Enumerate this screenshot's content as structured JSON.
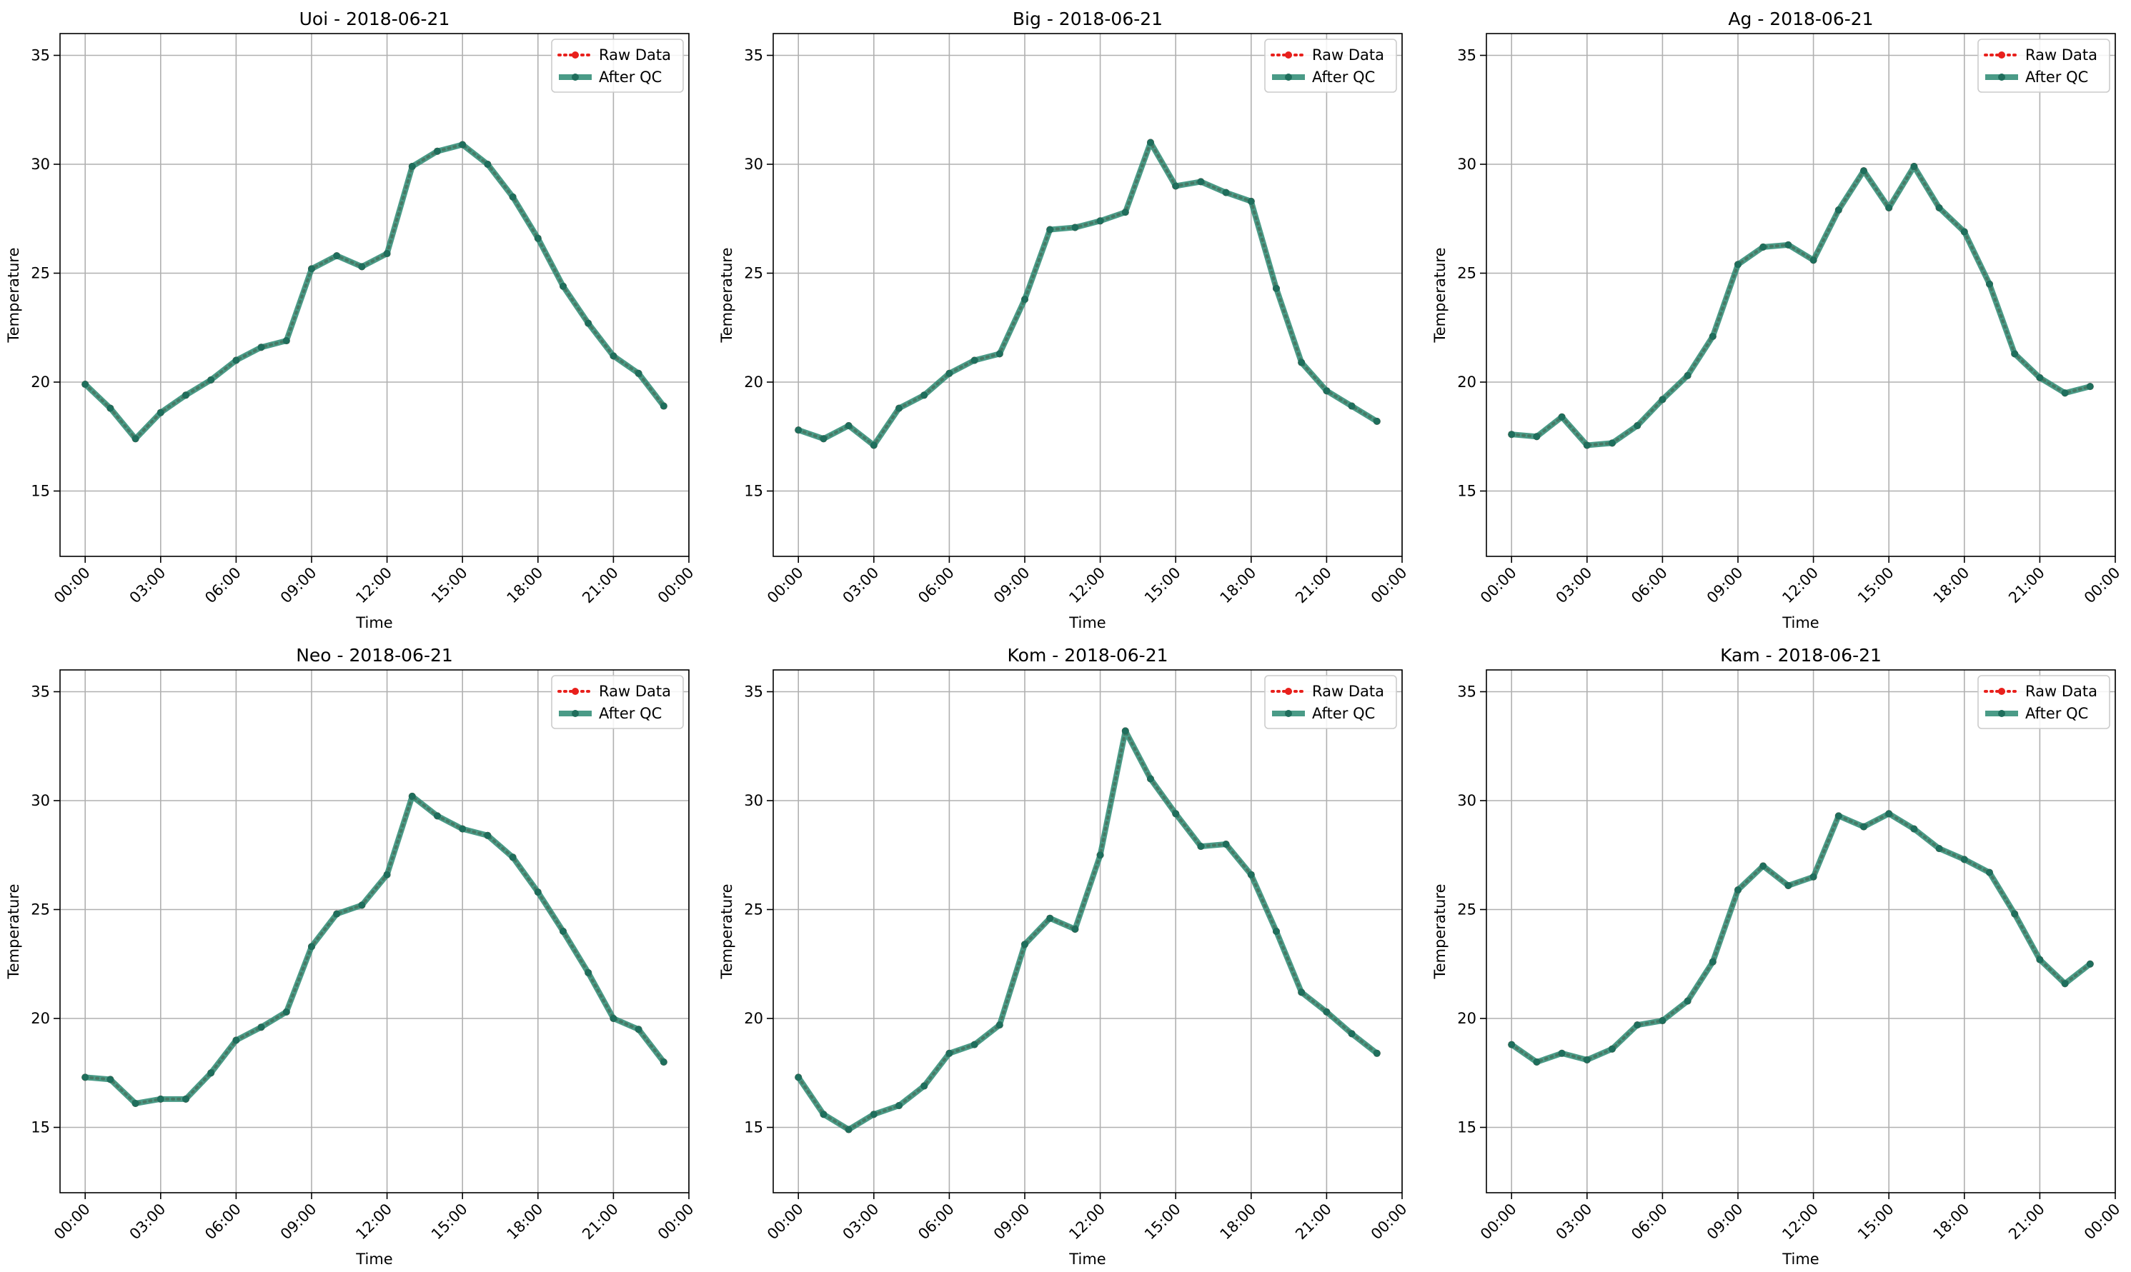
{
  "chart_data": [
    {
      "type": "line",
      "title": "Uoi - 2018-06-21",
      "xlabel": "Time",
      "ylabel": "Temperature",
      "ylim": [
        12,
        36
      ],
      "xlim_hours": [
        -1,
        24
      ],
      "xticks": [
        "00:00",
        "03:00",
        "06:00",
        "09:00",
        "12:00",
        "15:00",
        "18:00",
        "21:00",
        "00:00"
      ],
      "yticks": [
        15,
        20,
        25,
        30,
        35
      ],
      "grid": true,
      "legend_position": "top-right",
      "x": [
        "00:00",
        "01:00",
        "02:00",
        "03:00",
        "04:00",
        "05:00",
        "06:00",
        "07:00",
        "08:00",
        "09:00",
        "10:00",
        "11:00",
        "12:00",
        "13:00",
        "14:00",
        "15:00",
        "16:00",
        "17:00",
        "18:00",
        "19:00",
        "20:00",
        "21:00",
        "22:00",
        "23:00"
      ],
      "series": [
        {
          "name": "Raw Data",
          "values": [
            19.9,
            18.8,
            17.4,
            18.6,
            19.4,
            20.1,
            21.0,
            21.6,
            21.9,
            25.2,
            25.8,
            25.3,
            25.9,
            29.9,
            30.6,
            30.9,
            30.0,
            28.5,
            26.6,
            24.4,
            22.7,
            21.2,
            20.4,
            18.9
          ]
        },
        {
          "name": "After QC",
          "values": [
            19.9,
            18.8,
            17.4,
            18.6,
            19.4,
            20.1,
            21.0,
            21.6,
            21.9,
            25.2,
            25.8,
            25.3,
            25.9,
            29.9,
            30.6,
            30.9,
            30.0,
            28.5,
            26.6,
            24.4,
            22.7,
            21.2,
            20.4,
            18.9
          ]
        }
      ]
    },
    {
      "type": "line",
      "title": "Big - 2018-06-21",
      "xlabel": "Time",
      "ylabel": "Temperature",
      "ylim": [
        12,
        36
      ],
      "xlim_hours": [
        -1,
        24
      ],
      "xticks": [
        "00:00",
        "03:00",
        "06:00",
        "09:00",
        "12:00",
        "15:00",
        "18:00",
        "21:00",
        "00:00"
      ],
      "yticks": [
        15,
        20,
        25,
        30,
        35
      ],
      "grid": true,
      "legend_position": "top-right",
      "x": [
        "00:00",
        "01:00",
        "02:00",
        "03:00",
        "04:00",
        "05:00",
        "06:00",
        "07:00",
        "08:00",
        "09:00",
        "10:00",
        "11:00",
        "12:00",
        "13:00",
        "14:00",
        "15:00",
        "16:00",
        "17:00",
        "18:00",
        "19:00",
        "20:00",
        "21:00",
        "22:00",
        "23:00"
      ],
      "series": [
        {
          "name": "Raw Data",
          "values": [
            17.8,
            17.4,
            18.0,
            17.1,
            18.8,
            19.4,
            20.4,
            21.0,
            21.3,
            23.8,
            27.0,
            27.1,
            27.4,
            27.8,
            31.0,
            29.0,
            29.2,
            28.7,
            28.3,
            24.3,
            20.9,
            19.6,
            18.9,
            18.2
          ]
        },
        {
          "name": "After QC",
          "values": [
            17.8,
            17.4,
            18.0,
            17.1,
            18.8,
            19.4,
            20.4,
            21.0,
            21.3,
            23.8,
            27.0,
            27.1,
            27.4,
            27.8,
            31.0,
            29.0,
            29.2,
            28.7,
            28.3,
            24.3,
            20.9,
            19.6,
            18.9,
            18.2
          ]
        }
      ]
    },
    {
      "type": "line",
      "title": "Ag - 2018-06-21",
      "xlabel": "Time",
      "ylabel": "Temperature",
      "ylim": [
        12,
        36
      ],
      "xlim_hours": [
        -1,
        24
      ],
      "xticks": [
        "00:00",
        "03:00",
        "06:00",
        "09:00",
        "12:00",
        "15:00",
        "18:00",
        "21:00",
        "00:00"
      ],
      "yticks": [
        15,
        20,
        25,
        30,
        35
      ],
      "grid": true,
      "legend_position": "top-right",
      "x": [
        "00:00",
        "01:00",
        "02:00",
        "03:00",
        "04:00",
        "05:00",
        "06:00",
        "07:00",
        "08:00",
        "09:00",
        "10:00",
        "11:00",
        "12:00",
        "13:00",
        "14:00",
        "15:00",
        "16:00",
        "17:00",
        "18:00",
        "19:00",
        "20:00",
        "21:00",
        "22:00",
        "23:00"
      ],
      "series": [
        {
          "name": "Raw Data",
          "values": [
            17.6,
            17.5,
            18.4,
            17.1,
            17.2,
            18.0,
            19.2,
            20.3,
            22.1,
            25.4,
            26.2,
            26.3,
            25.6,
            27.9,
            29.7,
            28.0,
            29.9,
            28.0,
            26.9,
            24.5,
            21.3,
            20.2,
            19.5,
            19.8
          ]
        },
        {
          "name": "After QC",
          "values": [
            17.6,
            17.5,
            18.4,
            17.1,
            17.2,
            18.0,
            19.2,
            20.3,
            22.1,
            25.4,
            26.2,
            26.3,
            25.6,
            27.9,
            29.7,
            28.0,
            29.9,
            28.0,
            26.9,
            24.5,
            21.3,
            20.2,
            19.5,
            19.8
          ]
        }
      ]
    },
    {
      "type": "line",
      "title": "Neo - 2018-06-21",
      "xlabel": "Time",
      "ylabel": "Temperature",
      "ylim": [
        12,
        36
      ],
      "xlim_hours": [
        -1,
        24
      ],
      "xticks": [
        "00:00",
        "03:00",
        "06:00",
        "09:00",
        "12:00",
        "15:00",
        "18:00",
        "21:00",
        "00:00"
      ],
      "yticks": [
        15,
        20,
        25,
        30,
        35
      ],
      "grid": true,
      "legend_position": "top-right",
      "x": [
        "00:00",
        "01:00",
        "02:00",
        "03:00",
        "04:00",
        "05:00",
        "06:00",
        "07:00",
        "08:00",
        "09:00",
        "10:00",
        "11:00",
        "12:00",
        "13:00",
        "14:00",
        "15:00",
        "16:00",
        "17:00",
        "18:00",
        "19:00",
        "20:00",
        "21:00",
        "22:00",
        "23:00"
      ],
      "series": [
        {
          "name": "Raw Data",
          "values": [
            17.3,
            17.2,
            16.1,
            16.3,
            16.3,
            17.5,
            19.0,
            19.6,
            20.3,
            23.3,
            24.8,
            25.2,
            26.6,
            30.2,
            29.3,
            28.7,
            28.4,
            27.4,
            25.8,
            24.0,
            22.1,
            20.0,
            19.5,
            18.0
          ]
        },
        {
          "name": "After QC",
          "values": [
            17.3,
            17.2,
            16.1,
            16.3,
            16.3,
            17.5,
            19.0,
            19.6,
            20.3,
            23.3,
            24.8,
            25.2,
            26.6,
            30.2,
            29.3,
            28.7,
            28.4,
            27.4,
            25.8,
            24.0,
            22.1,
            20.0,
            19.5,
            18.0
          ]
        }
      ]
    },
    {
      "type": "line",
      "title": "Kom - 2018-06-21",
      "xlabel": "Time",
      "ylabel": "Temperature",
      "ylim": [
        12,
        36
      ],
      "xlim_hours": [
        -1,
        24
      ],
      "xticks": [
        "00:00",
        "03:00",
        "06:00",
        "09:00",
        "12:00",
        "15:00",
        "18:00",
        "21:00",
        "00:00"
      ],
      "yticks": [
        15,
        20,
        25,
        30,
        35
      ],
      "grid": true,
      "legend_position": "top-right",
      "x": [
        "00:00",
        "01:00",
        "02:00",
        "03:00",
        "04:00",
        "05:00",
        "06:00",
        "07:00",
        "08:00",
        "09:00",
        "10:00",
        "11:00",
        "12:00",
        "13:00",
        "14:00",
        "15:00",
        "16:00",
        "17:00",
        "18:00",
        "19:00",
        "20:00",
        "21:00",
        "22:00",
        "23:00"
      ],
      "series": [
        {
          "name": "Raw Data",
          "values": [
            17.3,
            15.6,
            14.9,
            15.6,
            16.0,
            16.9,
            18.4,
            18.8,
            19.7,
            23.4,
            24.6,
            24.1,
            27.5,
            33.2,
            31.0,
            29.4,
            27.9,
            28.0,
            26.6,
            24.0,
            21.2,
            20.3,
            19.3,
            18.4
          ]
        },
        {
          "name": "After QC",
          "values": [
            17.3,
            15.6,
            14.9,
            15.6,
            16.0,
            16.9,
            18.4,
            18.8,
            19.7,
            23.4,
            24.6,
            24.1,
            27.5,
            33.2,
            31.0,
            29.4,
            27.9,
            28.0,
            26.6,
            24.0,
            21.2,
            20.3,
            19.3,
            18.4
          ]
        }
      ]
    },
    {
      "type": "line",
      "title": "Kam - 2018-06-21",
      "xlabel": "Time",
      "ylabel": "Temperature",
      "ylim": [
        12,
        36
      ],
      "xlim_hours": [
        -1,
        24
      ],
      "xticks": [
        "00:00",
        "03:00",
        "06:00",
        "09:00",
        "12:00",
        "15:00",
        "18:00",
        "21:00",
        "00:00"
      ],
      "yticks": [
        15,
        20,
        25,
        30,
        35
      ],
      "grid": true,
      "legend_position": "top-right",
      "x": [
        "00:00",
        "01:00",
        "02:00",
        "03:00",
        "04:00",
        "05:00",
        "06:00",
        "07:00",
        "08:00",
        "09:00",
        "10:00",
        "11:00",
        "12:00",
        "13:00",
        "14:00",
        "15:00",
        "16:00",
        "17:00",
        "18:00",
        "19:00",
        "20:00",
        "21:00",
        "22:00",
        "23:00"
      ],
      "series": [
        {
          "name": "Raw Data",
          "values": [
            18.8,
            18.0,
            18.4,
            18.1,
            18.6,
            19.7,
            19.9,
            20.8,
            22.6,
            25.9,
            27.0,
            26.1,
            26.5,
            29.3,
            28.8,
            29.4,
            28.7,
            27.8,
            27.3,
            26.7,
            24.8,
            22.7,
            21.6,
            22.5
          ]
        },
        {
          "name": "After QC",
          "values": [
            18.8,
            18.0,
            18.4,
            18.1,
            18.6,
            19.7,
            19.9,
            20.8,
            22.6,
            25.9,
            27.0,
            26.1,
            26.5,
            29.3,
            28.8,
            29.4,
            28.7,
            27.8,
            27.3,
            26.7,
            24.8,
            22.7,
            21.6,
            22.5
          ]
        }
      ]
    }
  ],
  "colors": {
    "raw": "#e8201c",
    "qc": "#2a8a72",
    "qc_marker": "#1f6e5c",
    "grid": "#b0b0b0",
    "axis": "#000000",
    "legend_border": "#cccccc"
  }
}
